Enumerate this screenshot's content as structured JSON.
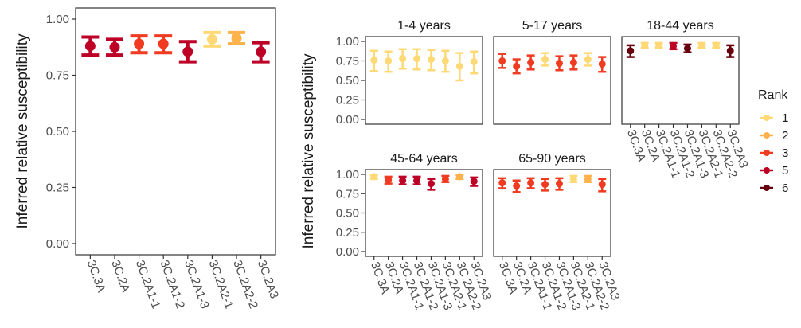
{
  "chart_data": [
    {
      "type": "scatter",
      "subtype": "point-range",
      "title": "",
      "xlabel": "",
      "ylabel": "Inferred relative susceptibility",
      "ylim": [
        0,
        1
      ],
      "yticks": [
        "0.00",
        "0.25",
        "0.50",
        "0.75",
        "1.00"
      ],
      "categories": [
        "3C.3A",
        "3C.2A",
        "3C.2A1-1",
        "3C.2A1-2",
        "3C.2A1-3",
        "3C.2A2-1",
        "3C.2A2-2",
        "3C.2A3"
      ],
      "points": [
        {
          "x": "3C.3A",
          "y": 0.88,
          "ymin": 0.84,
          "ymax": 0.92,
          "rank": "5"
        },
        {
          "x": "3C.2A",
          "y": 0.875,
          "ymin": 0.84,
          "ymax": 0.91,
          "rank": "5"
        },
        {
          "x": "3C.2A1-1",
          "y": 0.89,
          "ymin": 0.85,
          "ymax": 0.925,
          "rank": "3"
        },
        {
          "x": "3C.2A1-2",
          "y": 0.89,
          "ymin": 0.85,
          "ymax": 0.925,
          "rank": "3"
        },
        {
          "x": "3C.2A1-3",
          "y": 0.855,
          "ymin": 0.81,
          "ymax": 0.9,
          "rank": "5"
        },
        {
          "x": "3C.2A2-1",
          "y": 0.91,
          "ymin": 0.88,
          "ymax": 0.94,
          "rank": "1"
        },
        {
          "x": "3C.2A2-2",
          "y": 0.915,
          "ymin": 0.89,
          "ymax": 0.94,
          "rank": "2"
        },
        {
          "x": "3C.2A3",
          "y": 0.855,
          "ymin": 0.81,
          "ymax": 0.895,
          "rank": "5"
        }
      ]
    },
    {
      "type": "scatter",
      "subtype": "point-range-facets",
      "ylabel": "Inferred relative susceptibility",
      "ylim": [
        0,
        1
      ],
      "yticks": [
        "0.00",
        "0.25",
        "0.50",
        "0.75",
        "1.00"
      ],
      "categories": [
        "3C.3A",
        "3C.2A",
        "3C.2A1-1",
        "3C.2A1-2",
        "3C.2A1-3",
        "3C.2A2-1",
        "3C.2A2-2",
        "3C.2A3"
      ],
      "panels": [
        {
          "title": "1-4 years",
          "points": [
            {
              "y": 0.76,
              "ymin": 0.62,
              "ymax": 0.88,
              "rank": "1"
            },
            {
              "y": 0.75,
              "ymin": 0.61,
              "ymax": 0.87,
              "rank": "1"
            },
            {
              "y": 0.78,
              "ymin": 0.65,
              "ymax": 0.9,
              "rank": "1"
            },
            {
              "y": 0.78,
              "ymin": 0.64,
              "ymax": 0.9,
              "rank": "1"
            },
            {
              "y": 0.77,
              "ymin": 0.63,
              "ymax": 0.89,
              "rank": "1"
            },
            {
              "y": 0.75,
              "ymin": 0.61,
              "ymax": 0.88,
              "rank": "1"
            },
            {
              "y": 0.68,
              "ymin": 0.5,
              "ymax": 0.85,
              "rank": "1"
            },
            {
              "y": 0.74,
              "ymin": 0.59,
              "ymax": 0.87,
              "rank": "1"
            }
          ]
        },
        {
          "title": "5-17 years",
          "points": [
            {
              "y": 0.75,
              "ymin": 0.66,
              "ymax": 0.84,
              "rank": "3"
            },
            {
              "y": 0.68,
              "ymin": 0.59,
              "ymax": 0.77,
              "rank": "3"
            },
            {
              "y": 0.73,
              "ymin": 0.64,
              "ymax": 0.82,
              "rank": "3"
            },
            {
              "y": 0.77,
              "ymin": 0.69,
              "ymax": 0.85,
              "rank": "1"
            },
            {
              "y": 0.72,
              "ymin": 0.63,
              "ymax": 0.81,
              "rank": "3"
            },
            {
              "y": 0.73,
              "ymin": 0.64,
              "ymax": 0.82,
              "rank": "3"
            },
            {
              "y": 0.77,
              "ymin": 0.69,
              "ymax": 0.85,
              "rank": "1"
            },
            {
              "y": 0.71,
              "ymin": 0.61,
              "ymax": 0.8,
              "rank": "3"
            }
          ]
        },
        {
          "title": "18-44 years",
          "points": [
            {
              "y": 0.88,
              "ymin": 0.8,
              "ymax": 0.95,
              "rank": "6"
            },
            {
              "y": 0.95,
              "ymin": 0.92,
              "ymax": 0.98,
              "rank": "1"
            },
            {
              "y": 0.95,
              "ymin": 0.92,
              "ymax": 0.98,
              "rank": "1"
            },
            {
              "y": 0.94,
              "ymin": 0.9,
              "ymax": 0.98,
              "rank": "5"
            },
            {
              "y": 0.91,
              "ymin": 0.86,
              "ymax": 0.96,
              "rank": "6"
            },
            {
              "y": 0.95,
              "ymin": 0.92,
              "ymax": 0.98,
              "rank": "1"
            },
            {
              "y": 0.95,
              "ymin": 0.92,
              "ymax": 0.98,
              "rank": "1"
            },
            {
              "y": 0.88,
              "ymin": 0.8,
              "ymax": 0.95,
              "rank": "6"
            }
          ]
        },
        {
          "title": "45-64 years",
          "points": [
            {
              "y": 0.97,
              "ymin": 0.94,
              "ymax": 0.99,
              "rank": "1"
            },
            {
              "y": 0.93,
              "ymin": 0.88,
              "ymax": 0.97,
              "rank": "3"
            },
            {
              "y": 0.92,
              "ymin": 0.87,
              "ymax": 0.97,
              "rank": "5"
            },
            {
              "y": 0.92,
              "ymin": 0.87,
              "ymax": 0.97,
              "rank": "5"
            },
            {
              "y": 0.88,
              "ymin": 0.8,
              "ymax": 0.94,
              "rank": "5"
            },
            {
              "y": 0.94,
              "ymin": 0.9,
              "ymax": 0.98,
              "rank": "3"
            },
            {
              "y": 0.97,
              "ymin": 0.94,
              "ymax": 0.99,
              "rank": "2"
            },
            {
              "y": 0.91,
              "ymin": 0.85,
              "ymax": 0.96,
              "rank": "5"
            }
          ]
        },
        {
          "title": "65-90 years",
          "points": [
            {
              "y": 0.89,
              "ymin": 0.82,
              "ymax": 0.95,
              "rank": "3"
            },
            {
              "y": 0.85,
              "ymin": 0.77,
              "ymax": 0.92,
              "rank": "3"
            },
            {
              "y": 0.89,
              "ymin": 0.82,
              "ymax": 0.95,
              "rank": "3"
            },
            {
              "y": 0.87,
              "ymin": 0.79,
              "ymax": 0.94,
              "rank": "3"
            },
            {
              "y": 0.88,
              "ymin": 0.8,
              "ymax": 0.95,
              "rank": "3"
            },
            {
              "y": 0.94,
              "ymin": 0.9,
              "ymax": 0.98,
              "rank": "1"
            },
            {
              "y": 0.94,
              "ymin": 0.9,
              "ymax": 0.98,
              "rank": "2"
            },
            {
              "y": 0.87,
              "ymin": 0.78,
              "ymax": 0.94,
              "rank": "3"
            }
          ]
        }
      ]
    }
  ],
  "legend": {
    "title": "Rank",
    "placement": "right",
    "items": [
      {
        "label": "1",
        "color": "#FED976"
      },
      {
        "label": "2",
        "color": "#FEB24C"
      },
      {
        "label": "3",
        "color": "#F03B20"
      },
      {
        "label": "5",
        "color": "#BD0026"
      },
      {
        "label": "6",
        "color": "#67000D"
      }
    ]
  }
}
